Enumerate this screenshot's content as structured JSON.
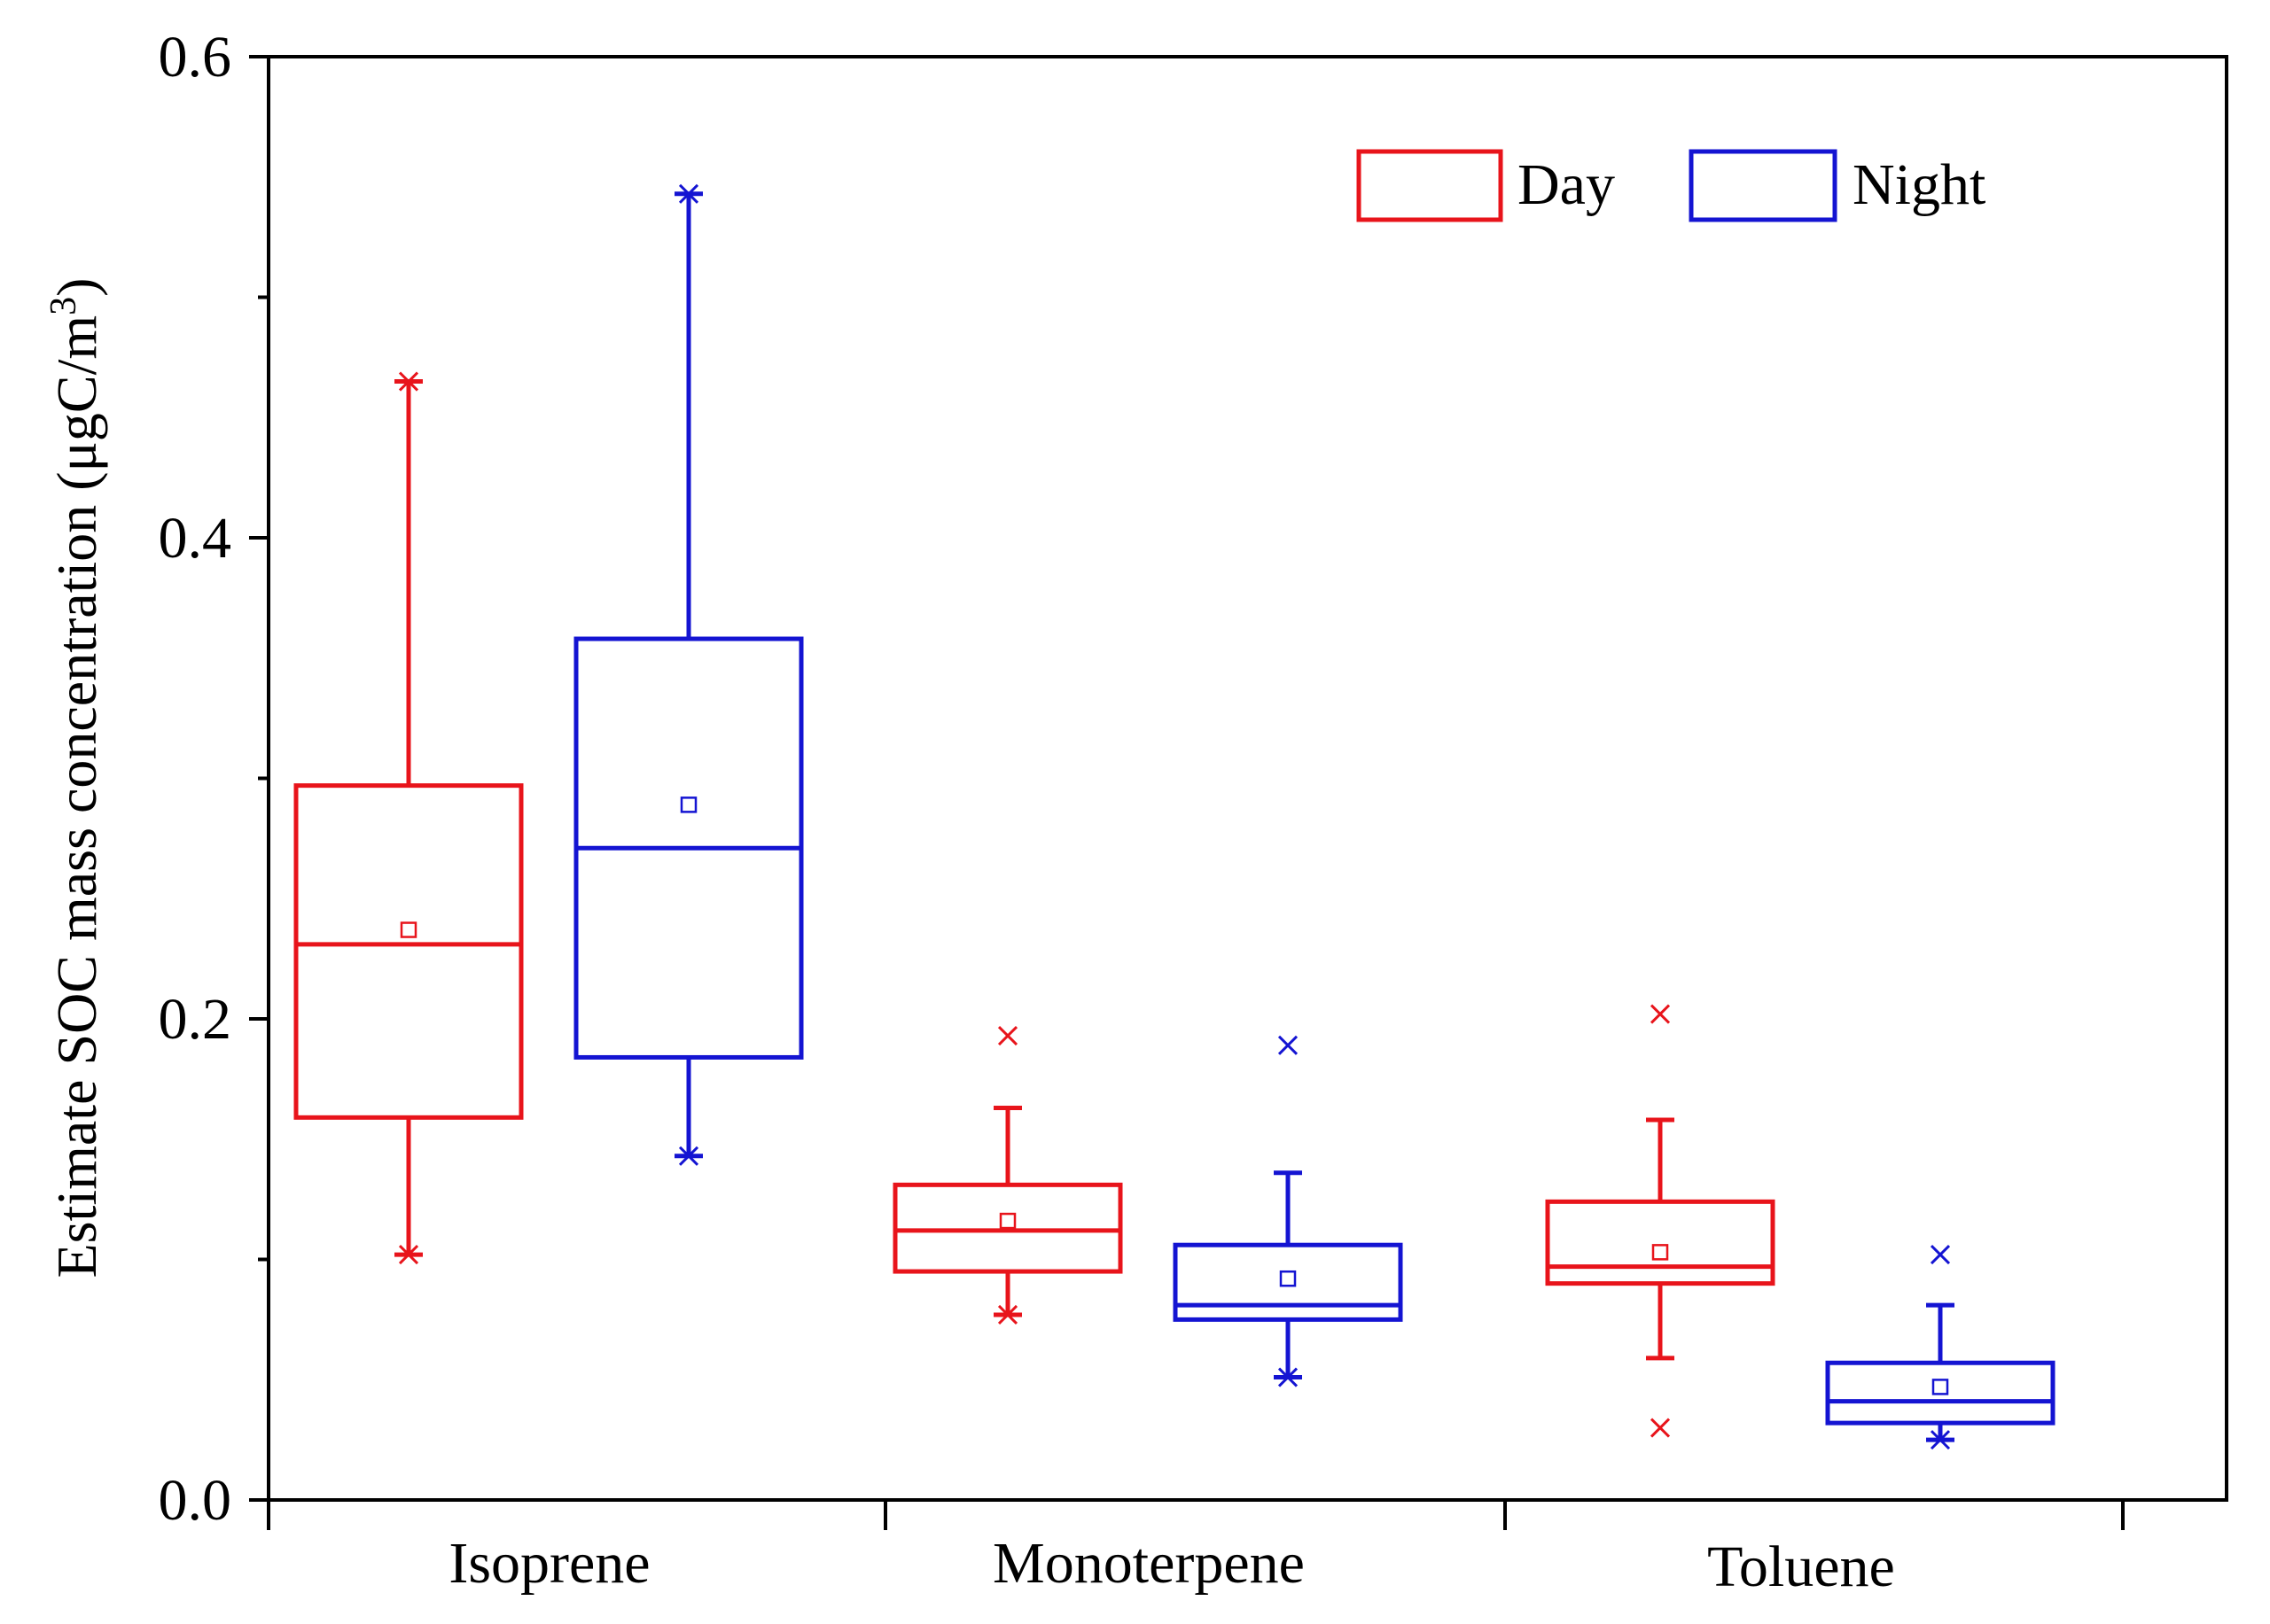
{
  "chart_data": {
    "type": "box",
    "title": "",
    "xlabel": "",
    "ylabel": "Estimate SOC mass concentration (μgC/m",
    "ylabel_superscript": "3",
    "ylabel_close": ")",
    "ylim": [
      0.0,
      0.6
    ],
    "y_ticks": [
      0.0,
      0.2,
      0.4,
      0.6
    ],
    "y_tick_labels": [
      "0.0",
      "0.2",
      "0.4",
      "0.6"
    ],
    "y_minor_ticks": [
      0.1,
      0.3,
      0.5
    ],
    "categories": [
      "Isoprene",
      "Monoterpene",
      "Toluene"
    ],
    "legend_position": "top-right",
    "series": [
      {
        "name": "Day",
        "color": "#e8141b",
        "boxes": [
          {
            "category": "Isoprene",
            "whisker_low": 0.102,
            "q1": 0.159,
            "median": 0.231,
            "q3": 0.297,
            "whisker_high": 0.465,
            "mean": 0.237,
            "min": 0.102,
            "max": 0.465
          },
          {
            "category": "Monoterpene",
            "whisker_low": 0.077,
            "q1": 0.095,
            "median": 0.112,
            "q3": 0.131,
            "whisker_high": 0.163,
            "mean": 0.116,
            "min": 0.077,
            "max": 0.193
          },
          {
            "category": "Toluene",
            "whisker_low": 0.059,
            "q1": 0.09,
            "median": 0.097,
            "q3": 0.124,
            "whisker_high": 0.158,
            "mean": 0.103,
            "min": 0.03,
            "max": 0.202
          }
        ]
      },
      {
        "name": "Night",
        "color": "#1414d2",
        "boxes": [
          {
            "category": "Isoprene",
            "whisker_low": 0.143,
            "q1": 0.184,
            "median": 0.271,
            "q3": 0.358,
            "whisker_high": 0.543,
            "mean": 0.289,
            "min": 0.143,
            "max": 0.543
          },
          {
            "category": "Monoterpene",
            "whisker_low": 0.051,
            "q1": 0.075,
            "median": 0.081,
            "q3": 0.106,
            "whisker_high": 0.136,
            "mean": 0.092,
            "min": 0.051,
            "max": 0.189
          },
          {
            "category": "Toluene",
            "whisker_low": 0.025,
            "q1": 0.032,
            "median": 0.041,
            "q3": 0.057,
            "whisker_high": 0.081,
            "mean": 0.047,
            "min": 0.025,
            "max": 0.102
          }
        ]
      }
    ]
  }
}
